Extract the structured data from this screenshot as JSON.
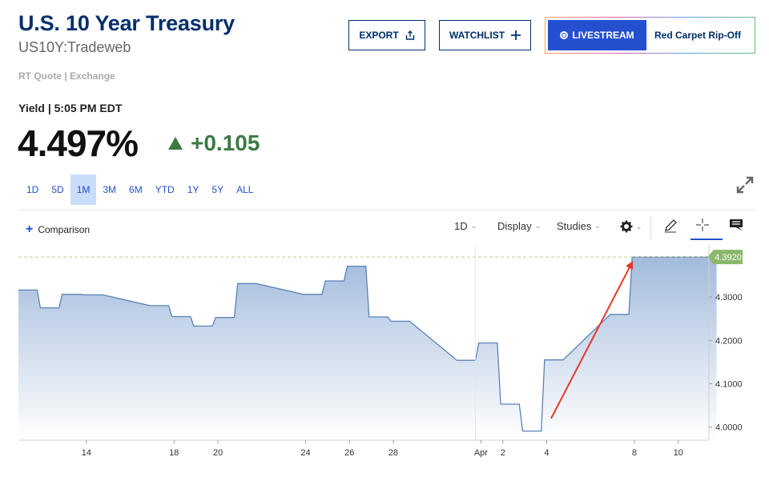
{
  "header": {
    "title": "U.S. 10 Year Treasury",
    "subtitle": "US10Y:Tradeweb",
    "rt_quote": "RT Quote | Exchange",
    "export_label": "EXPORT",
    "watchlist_label": "WATCHLIST",
    "livestream_label": "LIVESTREAM",
    "livestream_title": "Red Carpet Rip-Off"
  },
  "quote": {
    "yield_label": "Yield | 5:05 PM EDT",
    "price": "4.497%",
    "change": "+0.105",
    "change_color": "#3a7b44"
  },
  "ranges": {
    "items": [
      "1D",
      "5D",
      "1M",
      "3M",
      "6M",
      "YTD",
      "1Y",
      "5Y",
      "ALL"
    ],
    "active": "1M"
  },
  "toolbar": {
    "comparison_label": "Comparison",
    "interval_label": "1D",
    "display_label": "Display",
    "studies_label": "Studies",
    "icons": [
      "gear-icon",
      "pencil-icon",
      "crosshair-icon",
      "comment-icon",
      "expand-icon"
    ]
  },
  "colors": {
    "brand": "#002f6c",
    "accent": "#2450d0",
    "line": "#5a82b8",
    "annotation": "#e8372a",
    "last_price_badge": "#8ab86a"
  },
  "chart_data": {
    "type": "area",
    "x": [
      "Mar 11",
      "Mar 12",
      "Mar 13",
      "Mar 14",
      "Mar 17",
      "Mar 18",
      "Mar 19",
      "Mar 20",
      "Mar 21",
      "Mar 24",
      "Mar 25",
      "Mar 26",
      "Mar 27",
      "Mar 28",
      "Mar 31",
      "Apr 1",
      "Apr 2",
      "Apr 3",
      "Apr 4",
      "Apr 7",
      "Apr 8",
      "Apr 9",
      "Apr 10",
      "Apr 11"
    ],
    "values": [
      4.316,
      4.275,
      4.306,
      4.305,
      4.28,
      4.255,
      4.233,
      4.253,
      4.331,
      4.306,
      4.337,
      4.371,
      4.254,
      4.244,
      4.154,
      4.194,
      4.053,
      3.991,
      4.155,
      4.26,
      4.392,
      4.392,
      4.392,
      4.392
    ],
    "x_tick_labels": [
      "14",
      "18",
      "20",
      "24",
      "26",
      "28",
      "Apr",
      "2",
      "4",
      "8",
      "10"
    ],
    "y_tick_labels": [
      "4.0000",
      "4.1000",
      "4.2000",
      "4.3000"
    ],
    "ylim": [
      3.97,
      4.42
    ],
    "last_price_label": "4.3920",
    "last_price": 4.392,
    "annotation": {
      "type": "arrow",
      "from": [
        "Apr 4",
        4.02
      ],
      "to": [
        "Apr 8",
        4.38
      ]
    },
    "grid": false
  }
}
